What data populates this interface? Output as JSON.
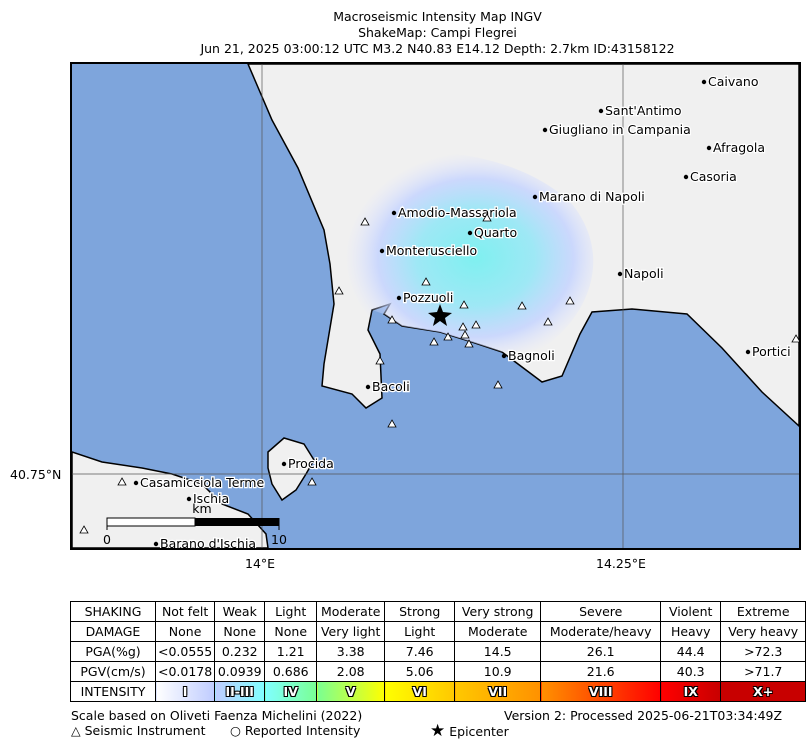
{
  "header": {
    "line1": "Macroseismic Intensity Map INGV",
    "line2": "ShakeMap: Campi Flegrei",
    "line3": "Jun 21, 2025 03:00:12 UTC M3.2 N40.83 E14.12 Depth: 2.7km ID:43158122"
  },
  "map": {
    "places": [
      "Caivano",
      "Sant'Antimo",
      "Giugliano in Campania",
      "Afragola",
      "Casoria",
      "Marano di Napoli",
      "Amodio-Massariola",
      "Quarto",
      "Monterusciello",
      "Napoli",
      "Pozzuoli",
      "Bagnoli",
      "Portici",
      "Bacoli",
      "Procida",
      "Casamicciola Terme",
      "Ischia",
      "Barano d'Ischia"
    ],
    "lat_label": "40.75°N",
    "lon_labels": [
      "14°E",
      "14.25°E"
    ],
    "scale": {
      "unit": "km",
      "min": "0",
      "max": "10"
    },
    "colors": {
      "sea": "#7ea5dc",
      "land": "#f0f0f0",
      "shaking_low": "#c8d0ff",
      "shaking_high": "#7ff0f0"
    }
  },
  "legend": {
    "rows": [
      {
        "head": "SHAKING",
        "cells": [
          "Not felt",
          "Weak",
          "Light",
          "Moderate",
          "Strong",
          "Very strong",
          "Severe",
          "Violent",
          "Extreme"
        ]
      },
      {
        "head": "DAMAGE",
        "cells": [
          "None",
          "None",
          "None",
          "Very light",
          "Light",
          "Moderate",
          "Moderate/heavy",
          "Heavy",
          "Very heavy"
        ]
      },
      {
        "head": "PGA(%g)",
        "cells": [
          "<0.0555",
          "0.232",
          "1.21",
          "3.38",
          "7.46",
          "14.5",
          "26.1",
          "44.4",
          ">72.3"
        ]
      },
      {
        "head": "PGV(cm/s)",
        "cells": [
          "<0.0178",
          "0.0939",
          "0.686",
          "2.08",
          "5.06",
          "10.9",
          "21.6",
          "40.3",
          ">71.7"
        ]
      },
      {
        "head": "INTENSITY",
        "cells": [
          "I",
          "II-III",
          "IV",
          "V",
          "VI",
          "VII",
          "VIII",
          "IX",
          "X+"
        ]
      }
    ],
    "intensity_colors": [
      "#ffffff",
      "#bfccff",
      "#80ffff",
      "#7aff93",
      "#ffff00",
      "#ffc800",
      "#ff9100",
      "#ff0000",
      "#c80000"
    ]
  },
  "footer": {
    "scale_note": "Scale based on Oliveti Faenza Michelini (2022)",
    "version": "Version 2: Processed 2025-06-21T03:34:49Z",
    "key_instrument": "Seismic Instrument",
    "key_reported": "Reported Intensity",
    "key_epicenter": "Epicenter"
  }
}
